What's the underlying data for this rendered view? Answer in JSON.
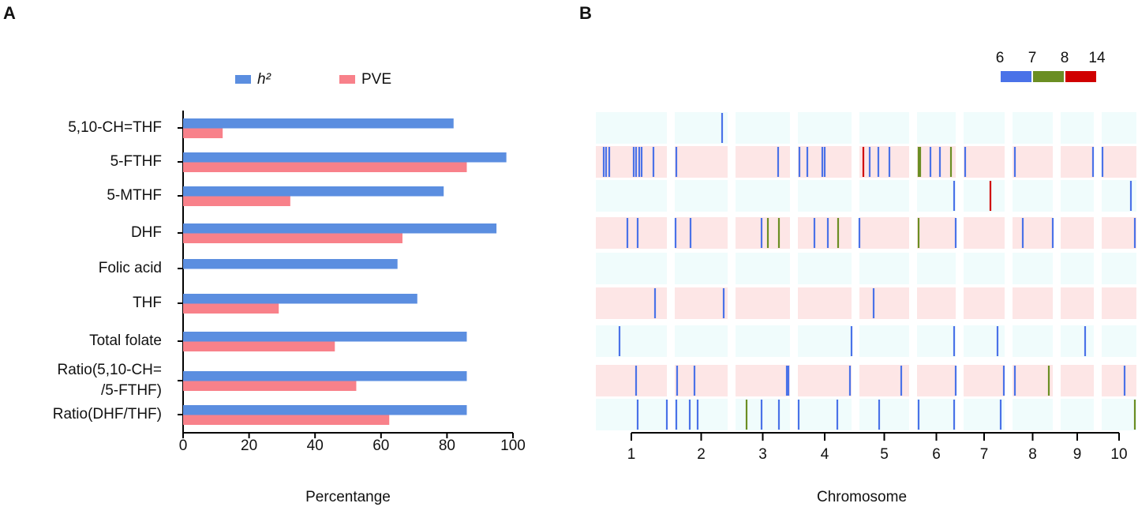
{
  "chart_data": [
    {
      "type": "hbar",
      "panel_label": "A",
      "xlabel": "Percentange",
      "categories": [
        "5,10-CH=THF",
        "5-FTHF",
        "5-MTHF",
        "DHF",
        "Folic acid",
        "THF",
        "Total folate",
        "Ratio(5,10-CH=\n/5-FTHF)",
        "Ratio(DHF/THF)"
      ],
      "series": [
        {
          "name": "h²",
          "color": "#5b8ee0",
          "values": [
            82,
            98,
            79,
            95,
            65,
            71,
            86,
            86,
            86
          ]
        },
        {
          "name": "PVE",
          "color": "#f8818a",
          "values": [
            12,
            86,
            32.5,
            66.5,
            null,
            29,
            46,
            52.5,
            62.5
          ]
        }
      ],
      "xlim": [
        0,
        100
      ],
      "xticks": [
        0,
        20,
        40,
        60,
        80,
        100
      ],
      "legend": "top"
    },
    {
      "type": "qtl-map",
      "panel_label": "B",
      "xlabel": "Chromosome",
      "chromosomes": [
        "1",
        "2",
        "3",
        "4",
        "5",
        "6",
        "7",
        "8",
        "9",
        "10"
      ],
      "chromosome_lengths": [
        90,
        67,
        69,
        68,
        63,
        49,
        52,
        51,
        42,
        44
      ],
      "legend": {
        "ticks": [
          6,
          7,
          8,
          14
        ],
        "colors": [
          "#4a72e8",
          "#6b8e23",
          "#d00000"
        ]
      },
      "qtls": [
        [
          [
            2,
            60,
            6.5
          ]
        ],
        [
          [
            1,
            10,
            6.5
          ],
          [
            1,
            13,
            6.5
          ],
          [
            1,
            17,
            6.5
          ],
          [
            1,
            48,
            6.5
          ],
          [
            1,
            51,
            6.5
          ],
          [
            1,
            55,
            6.5
          ],
          [
            1,
            58,
            6.5
          ],
          [
            1,
            73,
            6.5
          ],
          [
            2,
            2,
            6.5
          ],
          [
            3,
            54,
            6.5
          ],
          [
            4,
            2,
            6.5
          ],
          [
            4,
            12,
            6.5
          ],
          [
            4,
            31,
            6.5
          ],
          [
            4,
            34,
            6.5
          ],
          [
            5,
            5,
            10
          ],
          [
            5,
            13,
            6.5
          ],
          [
            5,
            24,
            6.5
          ],
          [
            5,
            38,
            6.5
          ],
          [
            6,
            2,
            7.5
          ],
          [
            6,
            4,
            7.5
          ],
          [
            6,
            17,
            6.5
          ],
          [
            6,
            29,
            6.5
          ],
          [
            6,
            43,
            7.5
          ],
          [
            7,
            2,
            6.5
          ],
          [
            8,
            3,
            6.5
          ],
          [
            9,
            41,
            6.5
          ],
          [
            10,
            1,
            6.5
          ]
        ],
        [
          [
            6,
            47,
            6.5
          ],
          [
            7,
            34,
            10
          ],
          [
            10,
            37,
            6.5
          ]
        ],
        [
          [
            1,
            40,
            6.5
          ],
          [
            1,
            53,
            6.5
          ],
          [
            2,
            1,
            6.5
          ],
          [
            2,
            20,
            6.5
          ],
          [
            3,
            33,
            6.5
          ],
          [
            3,
            41,
            7.5
          ],
          [
            3,
            55,
            7.5
          ],
          [
            4,
            21,
            6.5
          ],
          [
            4,
            38,
            6.5
          ],
          [
            4,
            51,
            7.5
          ],
          [
            5,
            0,
            6.5
          ],
          [
            6,
            2,
            7.5
          ],
          [
            6,
            49,
            6.5
          ],
          [
            8,
            13,
            6.5
          ],
          [
            8,
            51,
            6.5
          ],
          [
            10,
            42,
            6.5
          ]
        ],
        [],
        [
          [
            1,
            75,
            6.5
          ],
          [
            2,
            62,
            6.5
          ],
          [
            5,
            18,
            6.5
          ]
        ],
        [
          [
            1,
            30,
            6.5
          ],
          [
            4,
            68,
            6.5
          ],
          [
            6,
            47,
            6.5
          ],
          [
            7,
            43,
            6.5
          ],
          [
            9,
            31,
            6.5
          ]
        ],
        [
          [
            1,
            51,
            6.5
          ],
          [
            2,
            3,
            6.5
          ],
          [
            2,
            25,
            6.5
          ],
          [
            3,
            65,
            6.5
          ],
          [
            3,
            67,
            6.5
          ],
          [
            4,
            66,
            6.5
          ],
          [
            5,
            53,
            6.5
          ],
          [
            6,
            49,
            6.5
          ],
          [
            7,
            51,
            6.5
          ],
          [
            8,
            3,
            6.5
          ],
          [
            8,
            46,
            7.5
          ],
          [
            10,
            29,
            6.5
          ]
        ],
        [
          [
            1,
            53,
            6.5
          ],
          [
            1,
            90,
            6.5
          ],
          [
            2,
            2,
            6.5
          ],
          [
            2,
            19,
            6.5
          ],
          [
            2,
            29,
            6.5
          ],
          [
            3,
            14,
            7.5
          ],
          [
            3,
            33,
            6.5
          ],
          [
            3,
            55,
            6.5
          ],
          [
            4,
            1,
            6.5
          ],
          [
            4,
            50,
            6.5
          ],
          [
            5,
            25,
            6.5
          ],
          [
            6,
            2,
            6.5
          ],
          [
            6,
            47,
            6.5
          ],
          [
            7,
            47,
            6.5
          ],
          [
            10,
            42,
            7.5
          ]
        ]
      ]
    }
  ]
}
